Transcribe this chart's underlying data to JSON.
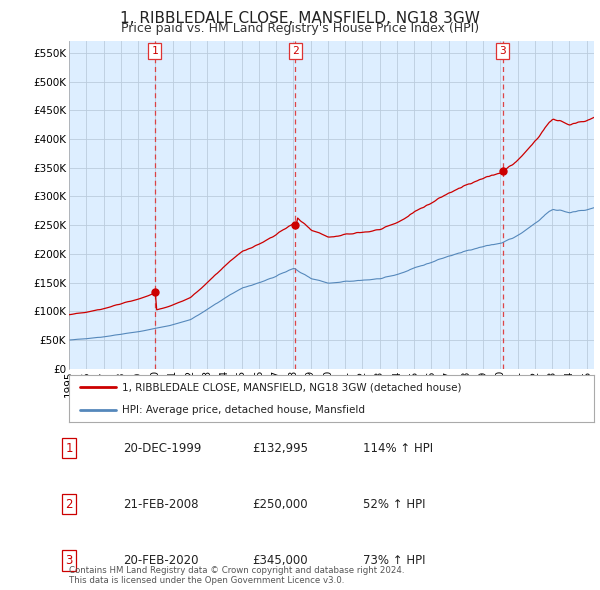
{
  "title": "1, RIBBLEDALE CLOSE, MANSFIELD, NG18 3GW",
  "subtitle": "Price paid vs. HM Land Registry's House Price Index (HPI)",
  "ylim": [
    0,
    570000
  ],
  "yticks": [
    0,
    50000,
    100000,
    150000,
    200000,
    250000,
    300000,
    350000,
    400000,
    450000,
    500000,
    550000
  ],
  "sale_dates": [
    1999.96,
    2008.12,
    2020.12
  ],
  "sale_prices": [
    132995,
    250000,
    345000
  ],
  "sale_labels": [
    "1",
    "2",
    "3"
  ],
  "sale_color": "#cc0000",
  "hpi_color": "#5588bb",
  "vline_color": "#dd3333",
  "chart_bg": "#ddeeff",
  "legend_label_red": "1, RIBBLEDALE CLOSE, MANSFIELD, NG18 3GW (detached house)",
  "legend_label_blue": "HPI: Average price, detached house, Mansfield",
  "table_data": [
    [
      "1",
      "20-DEC-1999",
      "£132,995",
      "114% ↑ HPI"
    ],
    [
      "2",
      "21-FEB-2008",
      "£250,000",
      "52% ↑ HPI"
    ],
    [
      "3",
      "20-FEB-2020",
      "£345,000",
      "73% ↑ HPI"
    ]
  ],
  "footnote": "Contains HM Land Registry data © Crown copyright and database right 2024.\nThis data is licensed under the Open Government Licence v3.0.",
  "background_color": "#ffffff",
  "grid_color": "#bbccdd",
  "title_fontsize": 11,
  "subtitle_fontsize": 9,
  "tick_fontsize": 7.5
}
